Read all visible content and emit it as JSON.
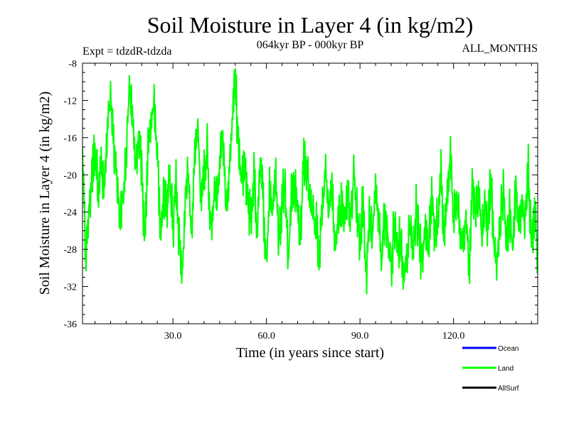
{
  "chart_data": {
    "type": "line",
    "title": "Soil Moisture in Layer 4 (in kg/m2)",
    "subtitle": "064kyr BP - 000kyr BP",
    "experiment_label": "Expt = tdzdR-tdzda",
    "months_label": "ALL_MONTHS",
    "xlabel": "Time (in years since start)",
    "ylabel": "Soil Moisture in Layer 4 (in kg/m2)",
    "xlim": [
      1,
      147
    ],
    "ylim": [
      -36,
      -8
    ],
    "xticks": [
      30,
      60,
      90,
      120
    ],
    "xtick_labels": [
      "30.0",
      "60.0",
      "90.0",
      "120.0"
    ],
    "yticks": [
      -36,
      -32,
      -28,
      -24,
      -20,
      -16,
      -12,
      -8
    ],
    "ytick_labels": [
      "-36",
      "-32",
      "-28",
      "-24",
      "-20",
      "-16",
      "-12",
      "-8"
    ],
    "legend_position": "bottom-right",
    "legend": [
      {
        "name": "Ocean",
        "color": "#0000ff"
      },
      {
        "name": "Land",
        "color": "#00ff00"
      },
      {
        "name": "AllSurf",
        "color": "#000000"
      }
    ],
    "series": [
      {
        "name": "Land",
        "color": "#00ff00",
        "x_start": 1,
        "x_end": 147,
        "anchor_values": [
          -18,
          -29,
          -24,
          -20,
          -17,
          -21,
          -19,
          -22,
          -15,
          -12,
          -17,
          -20,
          -25,
          -22,
          -18,
          -11,
          -13,
          -19,
          -16,
          -20,
          -28,
          -17,
          -14,
          -12,
          -18,
          -27,
          -22,
          -24,
          -19,
          -26,
          -20,
          -27,
          -31,
          -22,
          -20,
          -27,
          -18,
          -15,
          -22,
          -20,
          -17,
          -25,
          -23,
          -22,
          -19,
          -16,
          -24,
          -20,
          -14,
          -10,
          -17,
          -21,
          -19,
          -22,
          -25,
          -20,
          -26,
          -18,
          -23,
          -30,
          -21,
          -24,
          -20,
          -27,
          -23,
          -20,
          -30,
          -22,
          -21,
          -24,
          -26,
          -18,
          -20,
          -22,
          -24,
          -26,
          -28,
          -23,
          -20,
          -24,
          -21,
          -28,
          -25,
          -23,
          -25,
          -22,
          -25,
          -20,
          -24,
          -27,
          -23,
          -31,
          -24,
          -27,
          -21,
          -25,
          -29,
          -24,
          -27,
          -30,
          -25,
          -28,
          -27,
          -31,
          -29,
          -25,
          -28,
          -24,
          -27,
          -30,
          -25,
          -28,
          -22,
          -26,
          -24,
          -20,
          -27,
          -22,
          -18,
          -25,
          -22,
          -26,
          -28,
          -24,
          -30,
          -21,
          -24,
          -22,
          -26,
          -23,
          -25,
          -20,
          -28,
          -30,
          -25,
          -22,
          -27,
          -24,
          -28,
          -21,
          -26,
          -23,
          -25,
          -19,
          -28,
          -24,
          -29
        ],
        "noise_amplitude": 3.2,
        "samples_per_year": 6
      }
    ]
  }
}
